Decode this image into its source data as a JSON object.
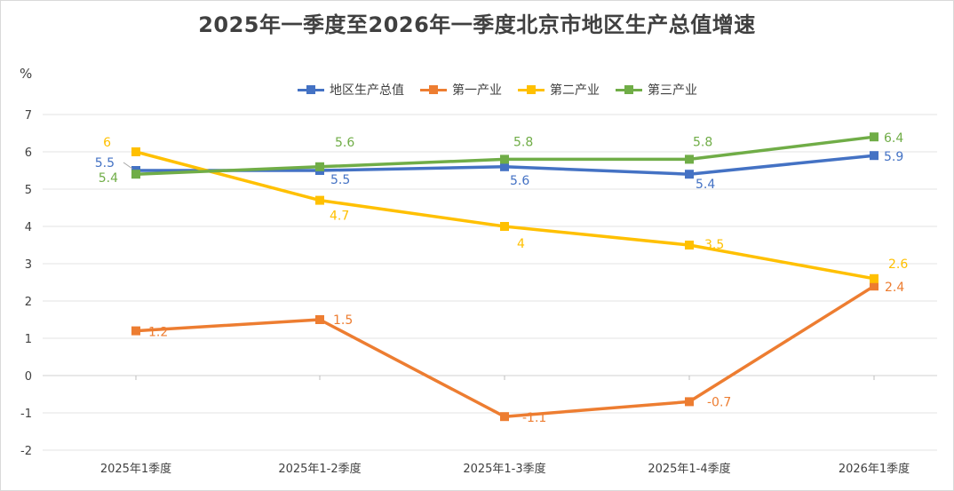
{
  "chart_data": {
    "type": "line",
    "title": "2025年一季度至2026年一季度北京市地区生产总值增速",
    "ylabel": "%",
    "xlabel": "",
    "categories": [
      "2025年1季度",
      "2025年1-2季度",
      "2025年1-3季度",
      "2025年1-4季度",
      "2026年1季度"
    ],
    "ylim": [
      -2,
      7
    ],
    "yticks": [
      7,
      6,
      5,
      4,
      3,
      2,
      1,
      0,
      -1,
      -2
    ],
    "grid": true,
    "legend_position": "top",
    "series": [
      {
        "name": "地区生产总值",
        "color": "#4472C4",
        "values": [
          5.5,
          5.5,
          5.6,
          5.4,
          5.9
        ]
      },
      {
        "name": "第一产业",
        "color": "#ED7D31",
        "values": [
          1.2,
          1.5,
          -1.1,
          -0.7,
          2.4
        ]
      },
      {
        "name": "第二产业",
        "color": "#FFC000",
        "values": [
          6,
          4.7,
          4,
          3.5,
          2.6
        ]
      },
      {
        "name": "第三产业",
        "color": "#70AD47",
        "values": [
          5.4,
          5.6,
          5.8,
          5.8,
          6.4
        ]
      }
    ]
  }
}
